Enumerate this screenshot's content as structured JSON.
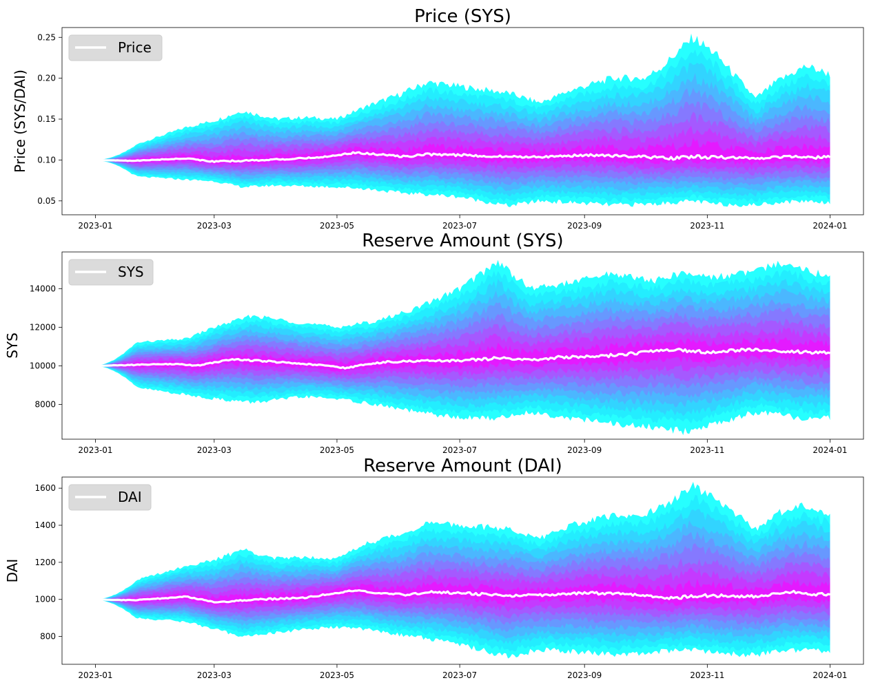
{
  "chart_data": [
    {
      "type": "area",
      "title": "Price (SYS)",
      "xlabel": "",
      "ylabel": "Price (SYS/DAI)",
      "x_range": [
        "2023-01-01",
        "2024-01-01"
      ],
      "x_ticks": [
        "2023-01",
        "2023-03",
        "2023-05",
        "2023-07",
        "2023-09",
        "2023-11",
        "2024-01"
      ],
      "y_ticks": [
        0.05,
        0.1,
        0.15,
        0.2,
        0.25
      ],
      "y_tick_labels": [
        "0.05",
        "0.10",
        "0.15",
        "0.20",
        "0.25"
      ],
      "ylim": [
        0.033,
        0.262
      ],
      "legend": {
        "label": "Price",
        "position": "top-left"
      },
      "grid": false,
      "median": [
        [
          "2023-01-01",
          0.1
        ],
        [
          "2023-01-20",
          0.099
        ],
        [
          "2023-02-15",
          0.102
        ],
        [
          "2023-03-01",
          0.098
        ],
        [
          "2023-03-25",
          0.1
        ],
        [
          "2023-04-15",
          0.102
        ],
        [
          "2023-04-25",
          0.104
        ],
        [
          "2023-05-10",
          0.109
        ],
        [
          "2023-05-25",
          0.106
        ],
        [
          "2023-06-05",
          0.104
        ],
        [
          "2023-06-15",
          0.107
        ],
        [
          "2023-07-01",
          0.106
        ],
        [
          "2023-07-25",
          0.104
        ],
        [
          "2023-08-15",
          0.104
        ],
        [
          "2023-09-01",
          0.106
        ],
        [
          "2023-09-20",
          0.105
        ],
        [
          "2023-10-15",
          0.102
        ],
        [
          "2023-10-25",
          0.104
        ],
        [
          "2023-11-10",
          0.103
        ],
        [
          "2023-11-25",
          0.102
        ],
        [
          "2023-12-15",
          0.105
        ],
        [
          "2023-12-25",
          0.103
        ],
        [
          "2024-01-01",
          0.104
        ]
      ],
      "envelope": [
        [
          "2023-01-01",
          0.1,
          0.1
        ],
        [
          "2023-01-20",
          0.08,
          0.118
        ],
        [
          "2023-02-15",
          0.076,
          0.14
        ],
        [
          "2023-03-01",
          0.074,
          0.148
        ],
        [
          "2023-03-15",
          0.067,
          0.16
        ],
        [
          "2023-04-01",
          0.069,
          0.15
        ],
        [
          "2023-04-15",
          0.068,
          0.152
        ],
        [
          "2023-05-01",
          0.067,
          0.15
        ],
        [
          "2023-05-15",
          0.065,
          0.165
        ],
        [
          "2023-06-01",
          0.06,
          0.18
        ],
        [
          "2023-06-15",
          0.058,
          0.195
        ],
        [
          "2023-07-01",
          0.055,
          0.19
        ],
        [
          "2023-07-25",
          0.044,
          0.182
        ],
        [
          "2023-08-10",
          0.05,
          0.17
        ],
        [
          "2023-08-25",
          0.048,
          0.185
        ],
        [
          "2023-09-15",
          0.045,
          0.2
        ],
        [
          "2023-10-01",
          0.046,
          0.2
        ],
        [
          "2023-10-10",
          0.047,
          0.215
        ],
        [
          "2023-10-25",
          0.05,
          0.25
        ],
        [
          "2023-11-05",
          0.046,
          0.23
        ],
        [
          "2023-11-25",
          0.045,
          0.175
        ],
        [
          "2023-12-05",
          0.048,
          0.195
        ],
        [
          "2023-12-20",
          0.05,
          0.215
        ],
        [
          "2024-01-01",
          0.048,
          0.205
        ]
      ]
    },
    {
      "type": "area",
      "title": "Reserve Amount (SYS)",
      "xlabel": "",
      "ylabel": "SYS",
      "x_range": [
        "2023-01-01",
        "2024-01-01"
      ],
      "x_ticks": [
        "2023-01",
        "2023-03",
        "2023-05",
        "2023-07",
        "2023-09",
        "2023-11",
        "2024-01"
      ],
      "y_ticks": [
        8000,
        10000,
        12000,
        14000
      ],
      "y_tick_labels": [
        "8000",
        "10000",
        "12000",
        "14000"
      ],
      "ylim": [
        6200,
        15900
      ],
      "legend": {
        "label": "SYS",
        "position": "top-left"
      },
      "grid": false,
      "median": [
        [
          "2023-01-01",
          10000
        ],
        [
          "2023-01-20",
          10050
        ],
        [
          "2023-02-10",
          10100
        ],
        [
          "2023-02-20",
          10000
        ],
        [
          "2023-03-10",
          10350
        ],
        [
          "2023-04-01",
          10200
        ],
        [
          "2023-04-20",
          10050
        ],
        [
          "2023-05-05",
          9900
        ],
        [
          "2023-05-25",
          10200
        ],
        [
          "2023-06-10",
          10250
        ],
        [
          "2023-07-01",
          10250
        ],
        [
          "2023-07-20",
          10400
        ],
        [
          "2023-08-05",
          10300
        ],
        [
          "2023-08-20",
          10450
        ],
        [
          "2023-09-10",
          10500
        ],
        [
          "2023-10-01",
          10700
        ],
        [
          "2023-10-15",
          10850
        ],
        [
          "2023-11-01",
          10700
        ],
        [
          "2023-11-20",
          10850
        ],
        [
          "2023-12-05",
          10800
        ],
        [
          "2023-12-20",
          10700
        ],
        [
          "2024-01-01",
          10700
        ]
      ],
      "envelope": [
        [
          "2023-01-01",
          10000,
          10000
        ],
        [
          "2023-01-20",
          8900,
          11200
        ],
        [
          "2023-02-15",
          8500,
          11400
        ],
        [
          "2023-03-01",
          8300,
          12000
        ],
        [
          "2023-03-20",
          8100,
          12600
        ],
        [
          "2023-04-15",
          8400,
          12200
        ],
        [
          "2023-05-01",
          8300,
          12000
        ],
        [
          "2023-05-20",
          8000,
          12300
        ],
        [
          "2023-06-10",
          7600,
          13000
        ],
        [
          "2023-07-01",
          7300,
          14000
        ],
        [
          "2023-07-20",
          7300,
          15400
        ],
        [
          "2023-08-05",
          7600,
          14000
        ],
        [
          "2023-08-25",
          7300,
          14300
        ],
        [
          "2023-09-15",
          7000,
          14800
        ],
        [
          "2023-10-05",
          6800,
          14400
        ],
        [
          "2023-10-20",
          6600,
          14800
        ],
        [
          "2023-11-05",
          7000,
          14600
        ],
        [
          "2023-11-25",
          7600,
          14900
        ],
        [
          "2023-12-10",
          7400,
          15400
        ],
        [
          "2023-12-25",
          7200,
          14800
        ],
        [
          "2024-01-01",
          7300,
          14700
        ]
      ]
    },
    {
      "type": "area",
      "title": "Reserve Amount (DAI)",
      "xlabel": "",
      "ylabel": "DAI",
      "x_range": [
        "2023-01-01",
        "2024-01-01"
      ],
      "x_ticks": [
        "2023-01",
        "2023-03",
        "2023-05",
        "2023-07",
        "2023-09",
        "2023-11",
        "2024-01"
      ],
      "y_ticks": [
        800,
        1000,
        1200,
        1400,
        1600
      ],
      "y_tick_labels": [
        "800",
        "1000",
        "1200",
        "1400",
        "1600"
      ],
      "ylim": [
        650,
        1660
      ],
      "legend": {
        "label": "DAI",
        "position": "top-left"
      },
      "grid": false,
      "median": [
        [
          "2023-01-01",
          1000
        ],
        [
          "2023-01-20",
          995
        ],
        [
          "2023-02-15",
          1015
        ],
        [
          "2023-03-01",
          985
        ],
        [
          "2023-03-25",
          1000
        ],
        [
          "2023-04-15",
          1010
        ],
        [
          "2023-04-25",
          1025
        ],
        [
          "2023-05-10",
          1050
        ],
        [
          "2023-05-25",
          1030
        ],
        [
          "2023-06-05",
          1025
        ],
        [
          "2023-06-15",
          1040
        ],
        [
          "2023-07-01",
          1035
        ],
        [
          "2023-07-25",
          1020
        ],
        [
          "2023-08-15",
          1025
        ],
        [
          "2023-09-01",
          1035
        ],
        [
          "2023-09-20",
          1030
        ],
        [
          "2023-10-15",
          1005
        ],
        [
          "2023-10-25",
          1020
        ],
        [
          "2023-11-10",
          1020
        ],
        [
          "2023-11-25",
          1015
        ],
        [
          "2023-12-15",
          1040
        ],
        [
          "2023-12-25",
          1025
        ],
        [
          "2024-01-01",
          1030
        ]
      ],
      "envelope": [
        [
          "2023-01-01",
          1000,
          1000
        ],
        [
          "2023-01-20",
          900,
          1100
        ],
        [
          "2023-02-15",
          880,
          1180
        ],
        [
          "2023-03-01",
          840,
          1210
        ],
        [
          "2023-03-15",
          800,
          1270
        ],
        [
          "2023-04-01",
          820,
          1220
        ],
        [
          "2023-04-15",
          840,
          1230
        ],
        [
          "2023-05-01",
          850,
          1220
        ],
        [
          "2023-05-15",
          840,
          1300
        ],
        [
          "2023-06-01",
          810,
          1350
        ],
        [
          "2023-06-15",
          790,
          1410
        ],
        [
          "2023-07-01",
          760,
          1400
        ],
        [
          "2023-07-25",
          690,
          1380
        ],
        [
          "2023-08-10",
          730,
          1330
        ],
        [
          "2023-08-25",
          720,
          1400
        ],
        [
          "2023-09-15",
          700,
          1450
        ],
        [
          "2023-10-01",
          710,
          1460
        ],
        [
          "2023-10-10",
          720,
          1500
        ],
        [
          "2023-10-25",
          730,
          1610
        ],
        [
          "2023-11-05",
          710,
          1540
        ],
        [
          "2023-11-25",
          700,
          1380
        ],
        [
          "2023-12-05",
          720,
          1460
        ],
        [
          "2023-12-20",
          730,
          1510
        ],
        [
          "2024-01-01",
          720,
          1460
        ]
      ]
    }
  ]
}
